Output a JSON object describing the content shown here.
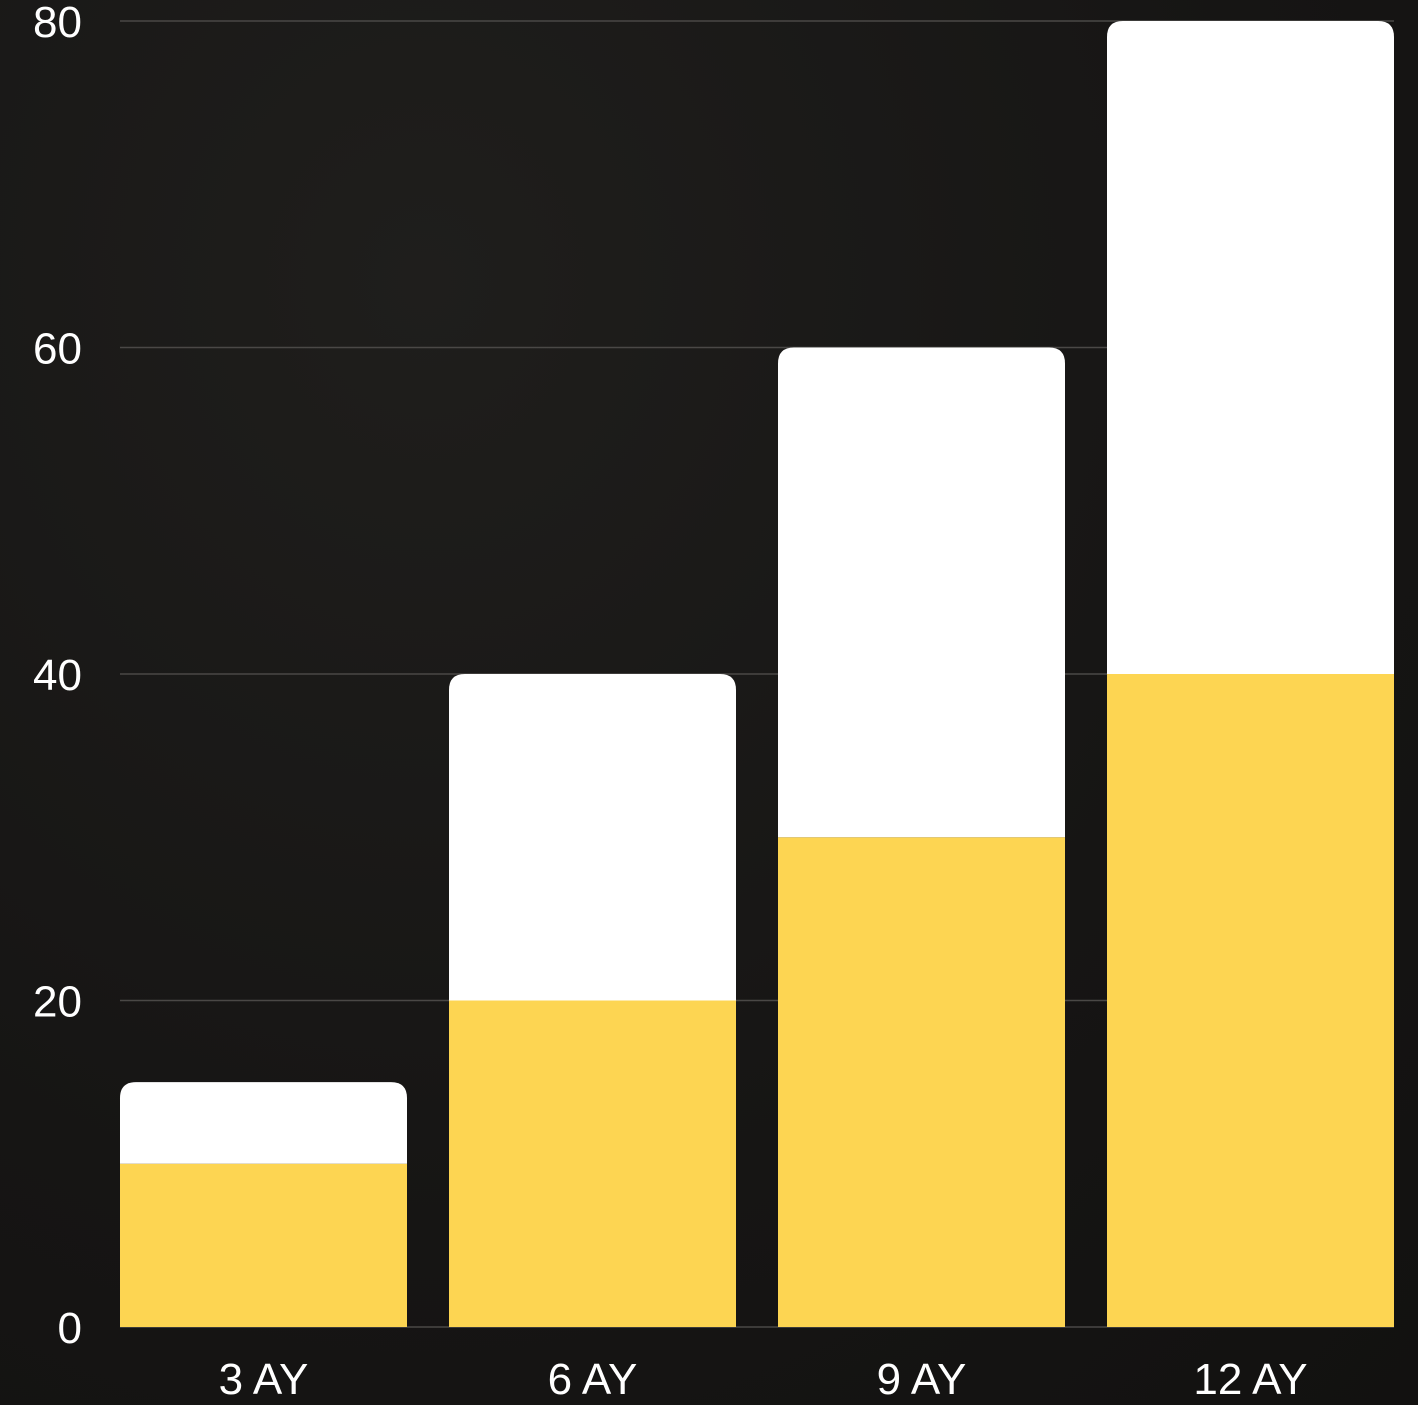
{
  "chart_data": {
    "type": "bar",
    "stacked": true,
    "categories": [
      "3 AY",
      "6 AY",
      "9 AY",
      "12 AY"
    ],
    "series": [
      {
        "values": [
          10,
          20,
          30,
          40
        ],
        "color": "#FDD552"
      },
      {
        "values": [
          5,
          20,
          30,
          40
        ],
        "color": "#FFFFFF"
      }
    ],
    "totals": [
      15,
      40,
      60,
      80
    ],
    "ylim": [
      0,
      80
    ],
    "yticks": [
      "0",
      "20",
      "40",
      "60",
      "80"
    ],
    "ytick_values": [
      0,
      20,
      40,
      60,
      80
    ],
    "grid": true,
    "background_color": "#171615",
    "gridline_color": "#4a4846",
    "text_color": "#FFFFFF"
  }
}
